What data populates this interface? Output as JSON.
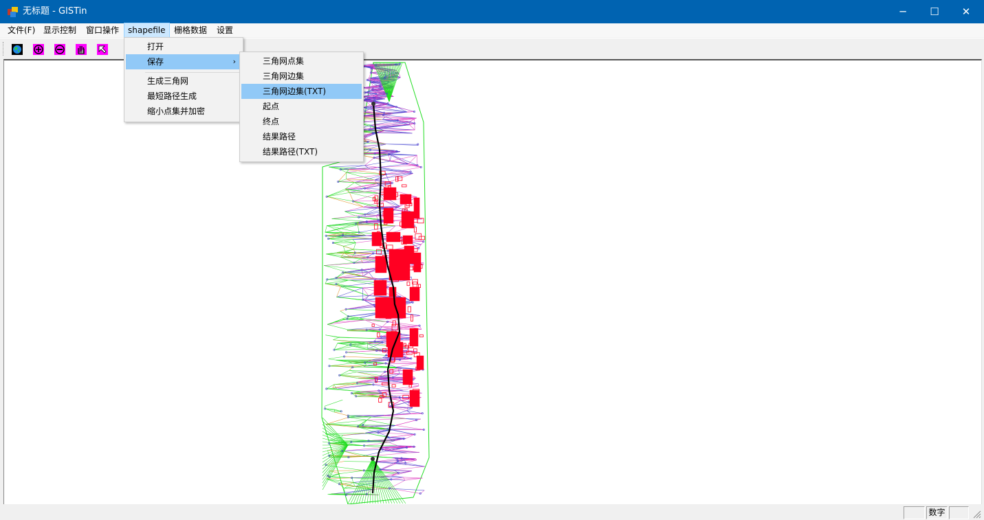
{
  "window": {
    "title": "无标题 - GISTin",
    "controls": {
      "minimize": "─",
      "maximize": "☐",
      "close": "✕"
    }
  },
  "menubar": {
    "items": [
      "文件(F)",
      "显示控制",
      "窗口操作",
      "shapefile",
      "栅格数据",
      "设置"
    ],
    "active_index": 3
  },
  "toolbar": {
    "buttons": [
      "globe-icon",
      "zoom-in-icon",
      "zoom-out-icon",
      "pan-hand-icon",
      "select-arrow-icon"
    ]
  },
  "shapefile_menu": {
    "items": [
      {
        "label": "打开"
      },
      {
        "label": "保存",
        "submenu": true
      },
      {
        "label": "生成三角网"
      },
      {
        "label": "最短路径生成"
      },
      {
        "label": "缩小点集并加密"
      }
    ]
  },
  "save_submenu": {
    "items": [
      "三角网点集",
      "三角网边集",
      "三角网边集(TXT)",
      "起点",
      "终点",
      "结果路径",
      "结果路径(TXT)"
    ],
    "highlighted_index": 2
  },
  "statusbar": {
    "num_indicator": "数字"
  },
  "colors": {
    "titlebar": "#0063b1",
    "tin_green": "#22dd22",
    "tin_orange": "#e08a1a",
    "tin_magenta": "#e040c0",
    "tin_blue": "#4040d0",
    "building_red": "#ff0022",
    "path": "#000000"
  }
}
